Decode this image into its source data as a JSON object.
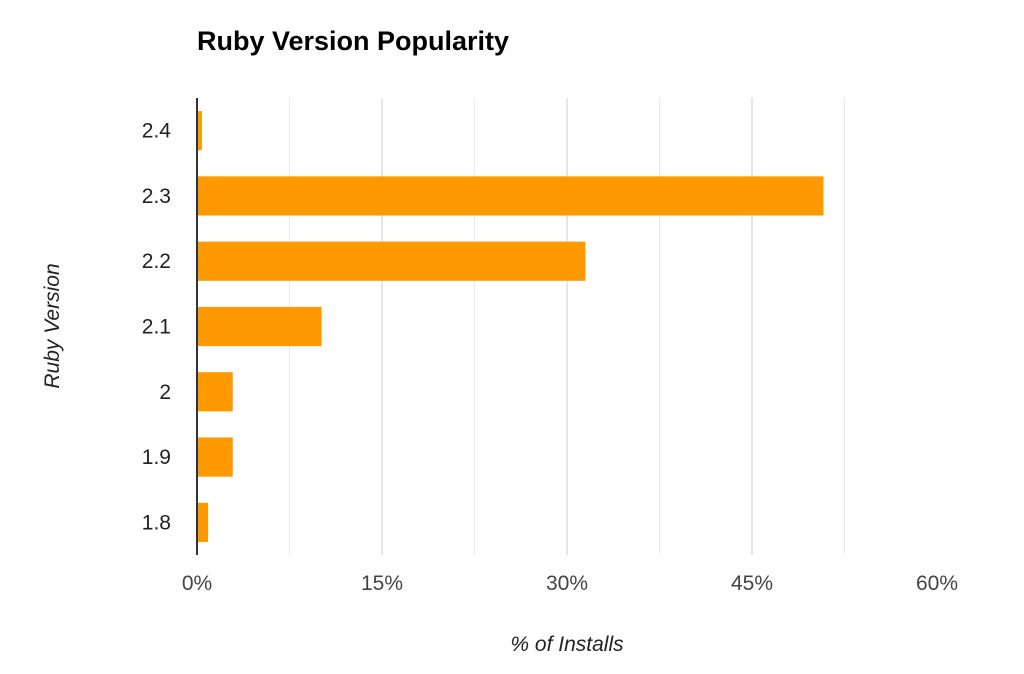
{
  "chart_data": {
    "type": "bar",
    "orientation": "horizontal",
    "title": "Ruby Version Popularity",
    "xlabel": "% of Installs",
    "ylabel": "Ruby Version",
    "categories": [
      "2.4",
      "2.3",
      "2.2",
      "2.1",
      "2",
      "1.9",
      "1.8"
    ],
    "values": [
      0.4,
      50.8,
      31.5,
      10.1,
      2.9,
      2.9,
      0.9
    ],
    "xlim": [
      0,
      60
    ],
    "x_ticks": [
      0,
      15,
      30,
      45,
      60
    ],
    "x_tick_labels": [
      "0%",
      "15%",
      "30%",
      "45%",
      "60%"
    ],
    "grid": true,
    "legend": "none",
    "bar_color": "#ff9900"
  }
}
